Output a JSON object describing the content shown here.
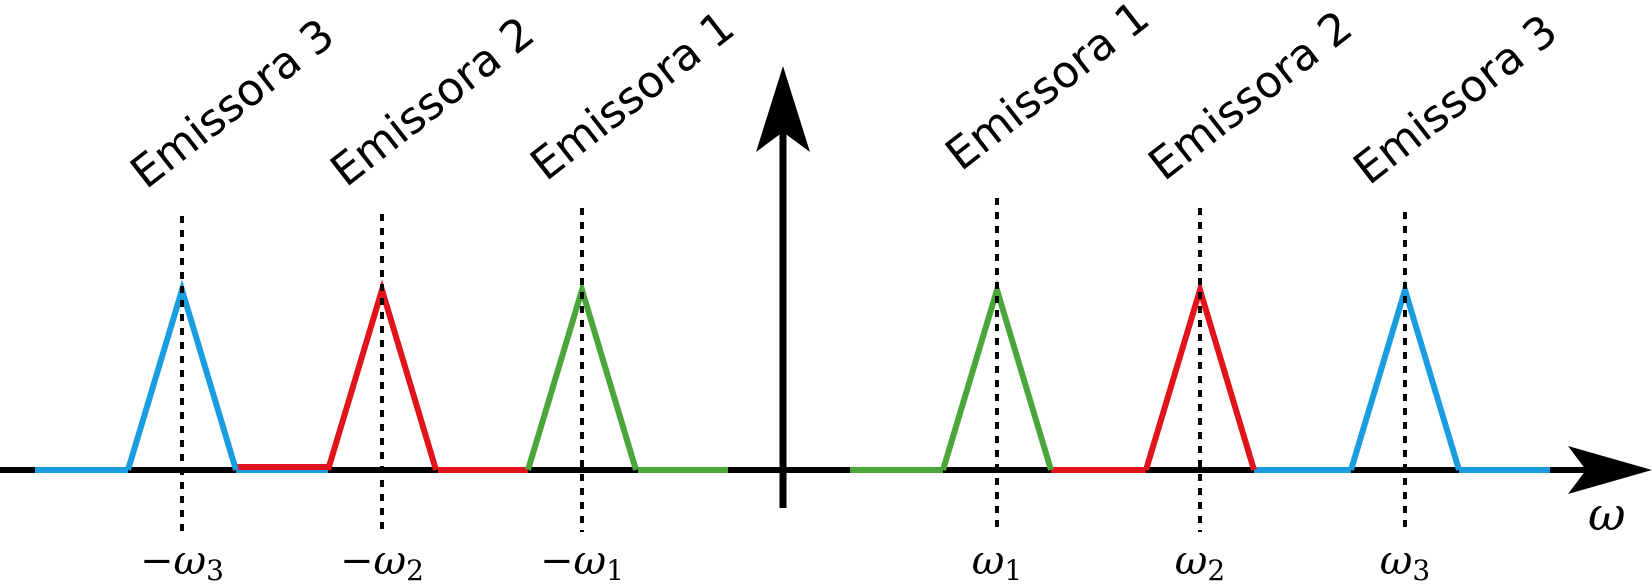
{
  "colors": {
    "axis": "#000000",
    "emitter1": "#4aa53a",
    "emitter2": "#e3131b",
    "emitter3": "#1a9de0"
  },
  "axis": {
    "x_label": "ω"
  },
  "bands": [
    {
      "id": "neg3",
      "label": "Emissora 3",
      "freq_sign": "−",
      "freq_symbol": "ω",
      "freq_index": "3",
      "color_key": "emitter3"
    },
    {
      "id": "neg2",
      "label": "Emissora 2",
      "freq_sign": "−",
      "freq_symbol": "ω",
      "freq_index": "2",
      "color_key": "emitter2"
    },
    {
      "id": "neg1",
      "label": "Emissora 1",
      "freq_sign": "−",
      "freq_symbol": "ω",
      "freq_index": "1",
      "color_key": "emitter1"
    },
    {
      "id": "pos1",
      "label": "Emissora 1",
      "freq_sign": "",
      "freq_symbol": "ω",
      "freq_index": "1",
      "color_key": "emitter1"
    },
    {
      "id": "pos2",
      "label": "Emissora 2",
      "freq_sign": "",
      "freq_symbol": "ω",
      "freq_index": "2",
      "color_key": "emitter2"
    },
    {
      "id": "pos3",
      "label": "Emissora 3",
      "freq_sign": "",
      "freq_symbol": "ω",
      "freq_index": "3",
      "color_key": "emitter3"
    }
  ]
}
